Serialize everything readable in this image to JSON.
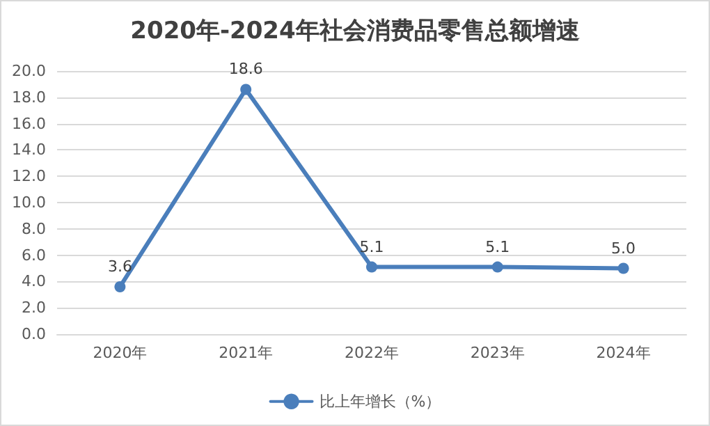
{
  "chart_data": {
    "type": "line",
    "title": "2020年-2024年社会消费品零售总额增速",
    "categories": [
      "2020年",
      "2021年",
      "2022年",
      "2023年",
      "2024年"
    ],
    "series": [
      {
        "name": "比上年增长（%）",
        "color": "#4a7ebb",
        "values": [
          3.6,
          18.6,
          5.1,
          5.1,
          5.0
        ]
      }
    ],
    "ylim": [
      0,
      20
    ],
    "yticks": [
      {
        "value": 0,
        "label": "0.0"
      },
      {
        "value": 2,
        "label": "2.0"
      },
      {
        "value": 4,
        "label": "4.0"
      },
      {
        "value": 6,
        "label": "6.0"
      },
      {
        "value": 8,
        "label": "8.0"
      },
      {
        "value": 10,
        "label": "10.0"
      },
      {
        "value": 12,
        "label": "12.0"
      },
      {
        "value": 14,
        "label": "14.0"
      },
      {
        "value": 16,
        "label": "16.0"
      },
      {
        "value": 18,
        "label": "18.0"
      },
      {
        "value": 20,
        "label": "20.0"
      }
    ],
    "value_labels": [
      [
        "3.6",
        "18.6",
        "5.1",
        "5.1",
        "5.0"
      ]
    ],
    "grid": "y",
    "legend": "bottom",
    "marker": "circle",
    "line_style": "solid"
  }
}
